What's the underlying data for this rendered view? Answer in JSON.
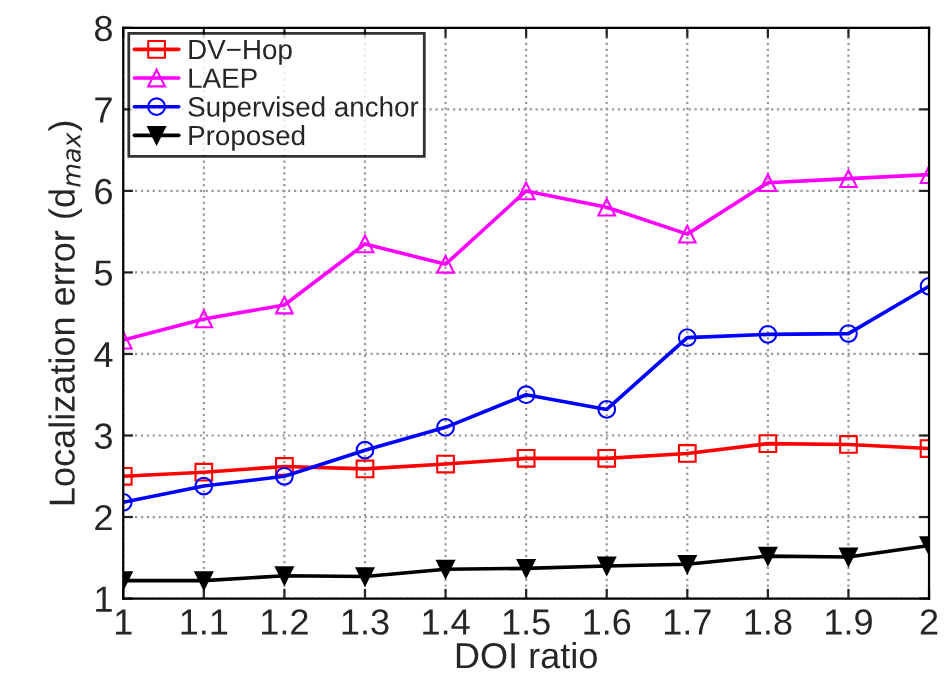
{
  "chart_data": {
    "type": "line",
    "xlabel": "DOI ratio",
    "ylabel": "Localization error (d$_{max}$)",
    "x": [
      1,
      1.1,
      1.2,
      1.3,
      1.4,
      1.5,
      1.6,
      1.7,
      1.8,
      1.9,
      2
    ],
    "series": [
      {
        "name": "DV−Hop",
        "color": "#ff0000",
        "marker": "square",
        "values": [
          2.5,
          2.55,
          2.62,
          2.59,
          2.65,
          2.72,
          2.72,
          2.78,
          2.9,
          2.89,
          2.84
        ]
      },
      {
        "name": "LAEP",
        "color": "#ff00ff",
        "marker": "triangle",
        "values": [
          4.17,
          4.43,
          4.6,
          5.35,
          5.1,
          6.0,
          5.8,
          5.47,
          6.1,
          6.15,
          6.2
        ]
      },
      {
        "name": "Supervised anchor",
        "color": "#0000ff",
        "marker": "circle",
        "values": [
          2.18,
          2.38,
          2.5,
          2.82,
          3.1,
          3.5,
          3.32,
          4.2,
          4.24,
          4.25,
          4.83
        ]
      },
      {
        "name": "Proposed",
        "color": "#000000",
        "marker": "triangle_down",
        "values": [
          1.22,
          1.22,
          1.28,
          1.27,
          1.36,
          1.37,
          1.4,
          1.42,
          1.52,
          1.51,
          1.65
        ]
      }
    ],
    "xlim": [
      1,
      2
    ],
    "xticks": [
      1,
      1.1,
      1.2,
      1.3,
      1.4,
      1.5,
      1.6,
      1.7,
      1.8,
      1.9,
      2
    ],
    "ylim": [
      1,
      8
    ],
    "yticks": [
      1,
      2,
      3,
      4,
      5,
      6,
      7,
      8
    ],
    "grid": true,
    "legend": "top left",
    "line_style": "solid"
  }
}
